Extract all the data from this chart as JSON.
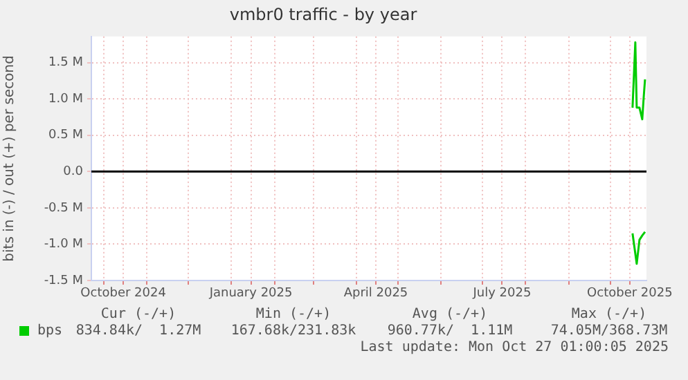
{
  "chart_data": {
    "type": "line",
    "title": "vmbr0 traffic - by year",
    "ylabel": "bits in (-) / out (+) per second",
    "series": [
      {
        "name": "bps",
        "color": "#00cc00",
        "x": [
          "2025-10-17",
          "2025-10-19",
          "2025-10-20",
          "2025-10-22",
          "2025-10-24",
          "2025-10-25",
          "2025-10-26"
        ],
        "values": [
          880000,
          1780000,
          880000,
          880000,
          720000,
          1010000,
          1270000
        ]
      },
      {
        "color": "#00cc00",
        "x": [
          "2025-10-17",
          "2025-10-20",
          "2025-10-22",
          "2025-10-24",
          "2025-10-26"
        ],
        "values": [
          -850000,
          -1270000,
          -940000,
          -880000,
          -830000
        ]
      }
    ],
    "xlim": [
      "2024-09-22",
      "2025-10-27T01:00"
    ],
    "xticks": [
      {
        "value": "2024-10-01",
        "label": null
      },
      {
        "value": "2024-10-15",
        "label": "October 2024"
      },
      {
        "value": "2024-11-01",
        "label": null
      },
      {
        "value": "2024-12-01",
        "label": null
      },
      {
        "value": "2025-01-01",
        "label": null
      },
      {
        "value": "2025-01-15",
        "label": "January 2025"
      },
      {
        "value": "2025-02-01",
        "label": null
      },
      {
        "value": "2025-03-01",
        "label": null
      },
      {
        "value": "2025-04-01",
        "label": null
      },
      {
        "value": "2025-04-15",
        "label": "April 2025"
      },
      {
        "value": "2025-05-01",
        "label": null
      },
      {
        "value": "2025-06-01",
        "label": null
      },
      {
        "value": "2025-07-01",
        "label": null
      },
      {
        "value": "2025-07-15",
        "label": "July 2025"
      },
      {
        "value": "2025-08-01",
        "label": null
      },
      {
        "value": "2025-09-01",
        "label": null
      },
      {
        "value": "2025-10-01",
        "label": null
      },
      {
        "value": "2025-10-15",
        "label": "October 2025"
      }
    ],
    "ylim": [
      -1500000,
      1860000
    ],
    "yticks": [
      {
        "value": -1500000,
        "label": "-1.5 M"
      },
      {
        "value": -1000000,
        "label": "-1.0 M"
      },
      {
        "value": -500000,
        "label": "-0.5 M"
      },
      {
        "value": 0,
        "label": "0.0"
      },
      {
        "value": 500000,
        "label": "0.5 M"
      },
      {
        "value": 1000000,
        "label": "1.0 M"
      },
      {
        "value": 1500000,
        "label": "1.5 M"
      }
    ],
    "ref_lines": [
      {
        "axis": "y",
        "value": 0,
        "color": "#000000"
      }
    ],
    "grid": true,
    "legend": "bottom left",
    "marker": "none",
    "line_style": "solid",
    "annotations": [
      "Cur (-/+)",
      "Min (-/+)",
      "Avg (-/+)",
      "Max (-/+)",
      "834.84k/  1.27M",
      "167.68k/231.83k",
      "960.77k/  1.11M",
      "74.05M/368.73M",
      "Last update: Mon Oct 27 01:00:05 2025"
    ]
  }
}
